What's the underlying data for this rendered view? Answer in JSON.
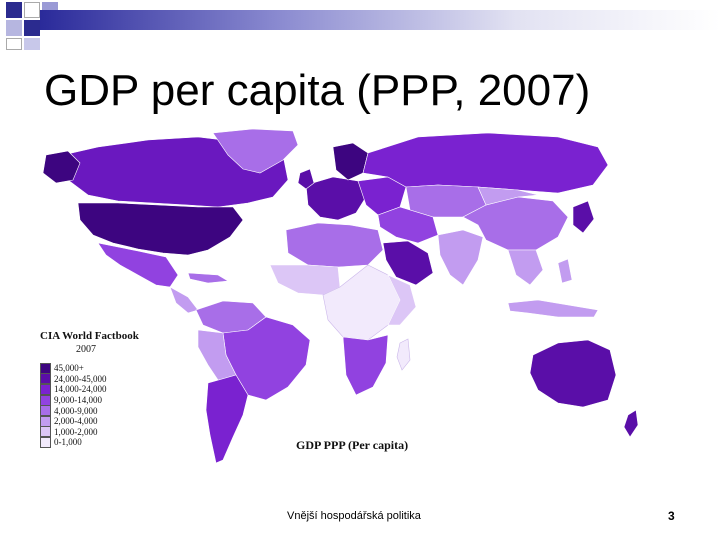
{
  "slide": {
    "title": "GDP per capita (PPP, 2007)",
    "footer_text": "Vnější hospodářská politika",
    "page_number": "3"
  },
  "map": {
    "source_title": "CIA World Factbook",
    "source_year": "2007",
    "caption": "GDP PPP (Per capita)",
    "legend": [
      {
        "label": "45,000+",
        "color": "#3d0580"
      },
      {
        "label": "24,000-45,000",
        "color": "#5a0ea8"
      },
      {
        "label": "14,000-24,000",
        "color": "#7a22d0"
      },
      {
        "label": "9,000-14,000",
        "color": "#9142e0"
      },
      {
        "label": "4,000-9,000",
        "color": "#a86ee8"
      },
      {
        "label": "2,000-4,000",
        "color": "#c29cf0"
      },
      {
        "label": "1,000-2,000",
        "color": "#dcc6f6"
      },
      {
        "label": "0-1,000",
        "color": "#f2eafc"
      }
    ]
  },
  "colors": {
    "title_bar_dark": "#2a2a9a",
    "ocean": "#ffffff"
  }
}
